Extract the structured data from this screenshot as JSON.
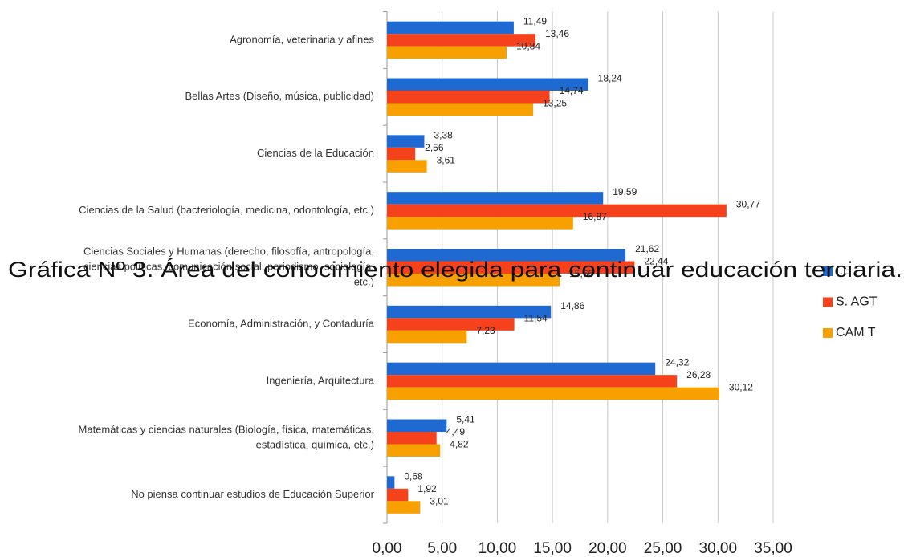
{
  "chart_data": {
    "type": "hbar",
    "title": "Gráfica Nº 3. Área del conocimiento elegida para continuar educación terciaria.",
    "categories": [
      "Agronomía, veterinaria y afines",
      "Bellas Artes (Diseño, música, publicidad)",
      "Ciencias de la Educación",
      "Ciencias de la Salud (bacteriología, medicina, odontología, etc.)",
      "Ciencias Sociales y Humanas (derecho, filosofía, antropología,\nciencias políticas, comunicación social, periodismo, sociología,\netc.)",
      "Economía, Administración, y Contaduría",
      "Ingeniería, Arquitectura",
      "Matemáticas y ciencias naturales (Biología, física, matemáticas,\nestadística, química, etc.)",
      "No piensa continuar estudios de Educación Superior"
    ],
    "series": [
      {
        "name": "I.E",
        "color": "#1e6ad2",
        "values": [
          11.49,
          18.24,
          3.38,
          19.59,
          21.62,
          14.86,
          24.32,
          5.41,
          0.68
        ],
        "value_labels": [
          "11,49",
          "18,24",
          "3,38",
          "19,59",
          "21,62",
          "14,86",
          "24,32",
          "5,41",
          "0,68"
        ]
      },
      {
        "name": "S. AGT",
        "color": "#f5411c",
        "values": [
          13.46,
          14.74,
          2.56,
          30.77,
          22.44,
          11.54,
          26.28,
          4.49,
          1.92
        ],
        "value_labels": [
          "13,46",
          "14,74",
          "2,56",
          "30,77",
          "22,44",
          "11,54",
          "26,28",
          "4,49",
          "1,92"
        ]
      },
      {
        "name": "CAM T",
        "color": "#f7a000",
        "values": [
          10.84,
          13.25,
          3.61,
          16.87,
          15.66,
          7.23,
          30.12,
          4.82,
          3.01
        ],
        "value_labels": [
          "10,84",
          "13,25",
          "3,61",
          "16,87",
          "15,66",
          "7,23",
          "30,12",
          "4,82",
          "3,01"
        ]
      }
    ],
    "xlim": [
      0,
      35
    ],
    "xticks": [
      {
        "value": 0,
        "label": "0,00"
      },
      {
        "value": 5,
        "label": "5,00"
      },
      {
        "value": 10,
        "label": "10,00"
      },
      {
        "value": 15,
        "label": "15,00"
      },
      {
        "value": 20,
        "label": "20,00"
      },
      {
        "value": 25,
        "label": "25,00"
      },
      {
        "value": 30,
        "label": "30,00"
      },
      {
        "value": 35,
        "label": "35,00"
      }
    ],
    "grid": true,
    "legend": "right"
  }
}
